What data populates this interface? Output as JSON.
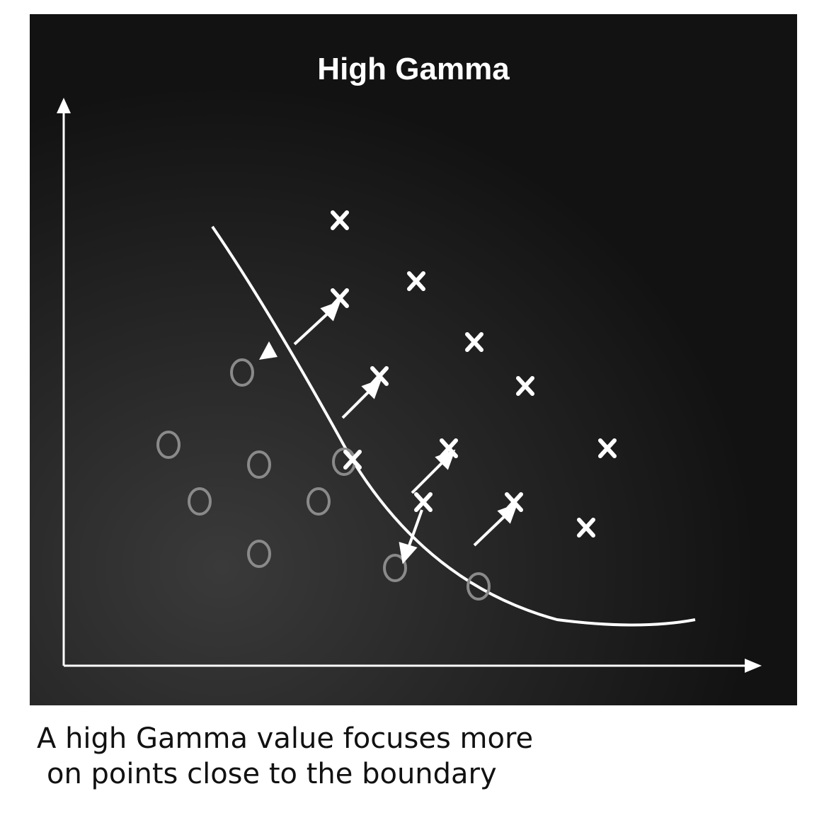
{
  "title": "High Gamma",
  "caption": {
    "line1": "A high Gamma value focuses more",
    "line2": "on points close to the boundary"
  },
  "markers": {
    "cross_glyph": "X",
    "circle_glyph": "O"
  },
  "colors": {
    "background": "#121212",
    "foreground": "#ffffff",
    "circle_class": "#8a8a8a",
    "caption_text": "#111111"
  }
}
